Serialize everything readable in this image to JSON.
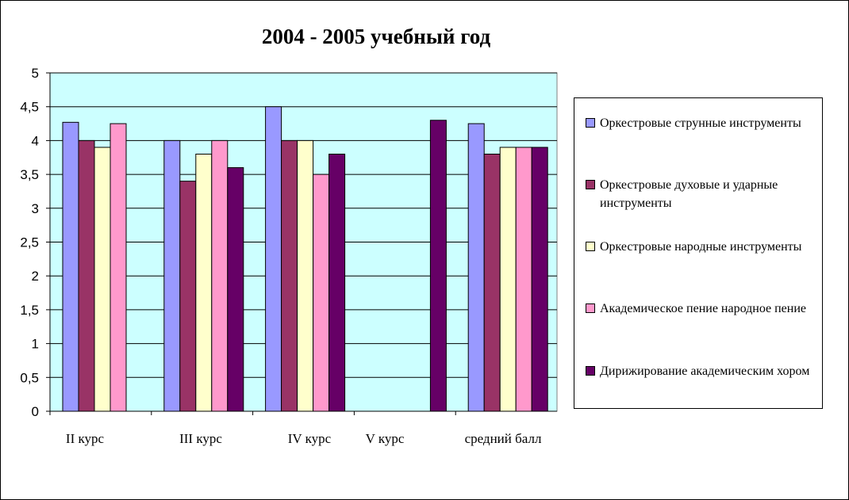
{
  "chart_data": {
    "type": "bar",
    "title": "2004 - 2005 учебный год",
    "categories": [
      "II  курс",
      "III  курс",
      "IV  курс",
      "V  курс",
      "средний балл"
    ],
    "series": [
      {
        "name": "Оркестровые струнные инструменты",
        "color": "#9999FF",
        "values": [
          4.27,
          4.0,
          4.5,
          null,
          4.25
        ]
      },
      {
        "name": "Оркестровые духовые и ударные инструменты",
        "color": "#993366",
        "values": [
          4.0,
          3.4,
          4.0,
          null,
          3.8
        ]
      },
      {
        "name": "Оркестровые народные инструменты",
        "color": "#FFFFCC",
        "values": [
          3.9,
          3.8,
          4.0,
          null,
          3.9
        ]
      },
      {
        "name": "Академическое пение   народное пение",
        "color": "#FF99CC",
        "values": [
          4.25,
          4.0,
          3.5,
          null,
          3.9
        ]
      },
      {
        "name": "Дирижирование академическим хором",
        "color": "#660066",
        "values": [
          null,
          3.6,
          3.8,
          4.3,
          3.9
        ]
      }
    ],
    "ylim": [
      0,
      5
    ],
    "yticks": [
      "0",
      "0,5",
      "1",
      "1,5",
      "2",
      "2,5",
      "3",
      "3,5",
      "4",
      "4,5",
      "5"
    ],
    "grid": true,
    "legend": "right",
    "plot_background": "#CCFFFF"
  }
}
